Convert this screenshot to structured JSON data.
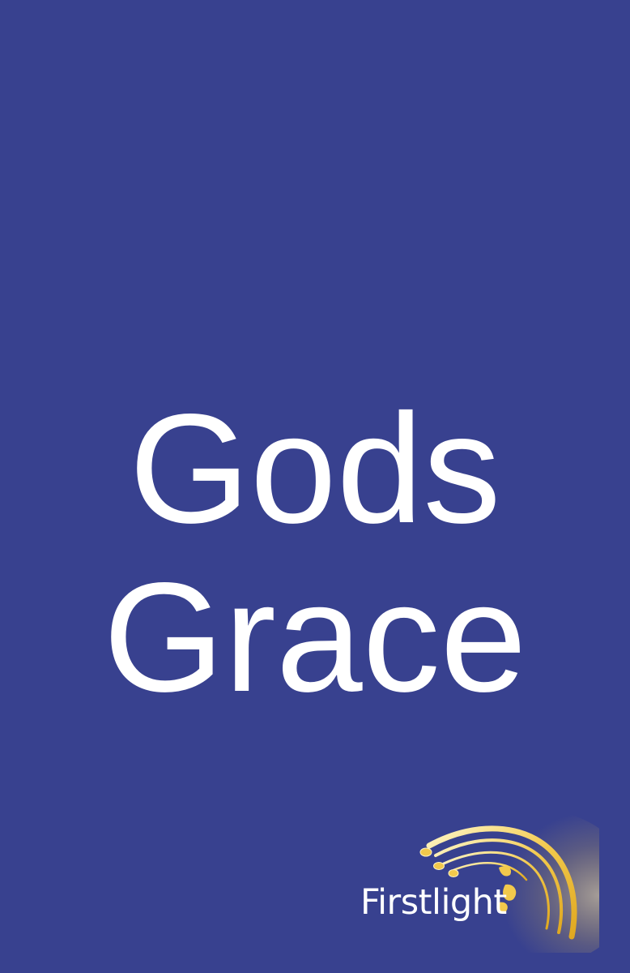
{
  "cover": {
    "background_color": "#38418f",
    "title_color": "#ffffff",
    "title_lines": [
      "Gods",
      "Grace"
    ]
  },
  "logo": {
    "text": "Firstlight",
    "text_color": "#ffffff",
    "accent_color": "#f2c94c",
    "icon": "shooting-star-swoosh-icon"
  }
}
